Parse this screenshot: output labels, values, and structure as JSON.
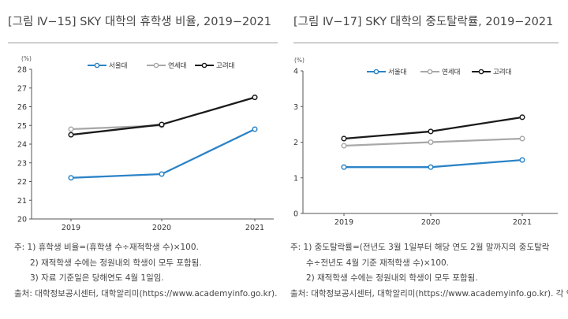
{
  "charts": [
    {
      "figure_title": "[그림 Ⅳ−15] SKY 대학의 휴학생 비율, 2019−2021",
      "notes": [
        "주: 1) 휴학생 비율=(휴학생 수÷재적학생 수)×100.",
        "2) 재적학생 수에는 정원내외 학생이 모두 포함됨.",
        "3) 자료 기준일은 당해연도 4월 1일임.",
        "출처: 대학정보공시센터, 대학알리미(https://www.academyinfo.go.kr)."
      ]
    },
    {
      "figure_title": "[그림 Ⅳ−17] SKY 대학의 중도탈락률, 2019−2021",
      "notes": [
        "주: 1) 중도탈락률=(전년도 3월 1일부터 해당 연도 2월 말까지의 중도탈락",
        "수÷전년도 4월 기준 재적학생 수)×100.",
        "2) 재적학생 수에는 정원내외 학생이 모두 포함됨.",
        "출처: 대학정보공시센터, 대학알리미(https://www.academyinfo.go.kr). 각 연"
      ]
    }
  ],
  "chart_data": [
    {
      "type": "line",
      "title": "SKY 대학의 휴학생 비율, 2019−2021",
      "unit_label": "(%)",
      "x": [
        "2019",
        "2020",
        "2021"
      ],
      "ylim": [
        20,
        28
      ],
      "yticks": [
        "20",
        "21",
        "22",
        "23",
        "24",
        "25",
        "26",
        "27",
        "28"
      ],
      "series": [
        {
          "name": "서울대",
          "color": "#2b83c6",
          "values": [
            22.2,
            22.4,
            24.8
          ]
        },
        {
          "name": "연세대",
          "color": "#a8a8a8",
          "values": [
            24.8,
            25.0,
            null
          ]
        },
        {
          "name": "고려대",
          "color": "#1a1a1a",
          "values": [
            24.5,
            25.05,
            26.5
          ]
        }
      ],
      "legend_position": "top"
    },
    {
      "type": "line",
      "title": "SKY 대학의 중도탈락률, 2019−2021",
      "unit_label": "(%)",
      "x": [
        "2019",
        "2020",
        "2021"
      ],
      "ylim": [
        0,
        4
      ],
      "yticks": [
        "0",
        "1",
        "2",
        "3",
        "4"
      ],
      "series": [
        {
          "name": "서울대",
          "color": "#2b83c6",
          "values": [
            1.3,
            1.3,
            1.5
          ]
        },
        {
          "name": "연세대",
          "color": "#a8a8a8",
          "values": [
            1.9,
            2.0,
            2.1
          ]
        },
        {
          "name": "고려대",
          "color": "#1a1a1a",
          "values": [
            2.1,
            2.3,
            2.7
          ]
        }
      ],
      "legend_position": "top"
    }
  ]
}
